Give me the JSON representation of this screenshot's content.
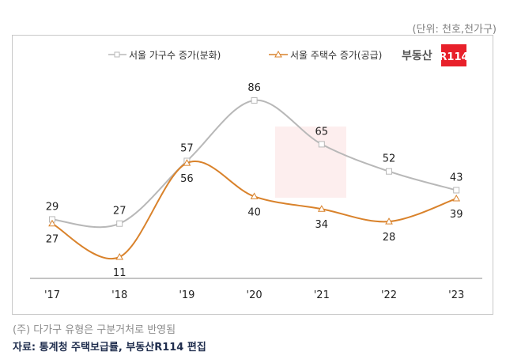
{
  "unit_label": "(단위: 천호,천가구)",
  "note": "(주) 다가구 유형은 구분거처로 반영됨",
  "source": "자료: 통계청 주택보급률, 부동산R114 편집",
  "logo": {
    "text": "부동산",
    "badge": "R114",
    "badge_color": "#e8202a"
  },
  "chart_data": {
    "type": "line",
    "categories": [
      "'17",
      "'18",
      "'19",
      "'20",
      "'21",
      "'22",
      "'23"
    ],
    "series": [
      {
        "name": "서울 가구수 증가(분화)",
        "values": [
          29,
          27,
          57,
          86,
          65,
          52,
          43
        ],
        "color": "#b8b8b8",
        "marker": "square"
      },
      {
        "name": "서울 주택수 증가(공급)",
        "values": [
          27,
          11,
          56,
          40,
          34,
          28,
          39
        ],
        "color": "#d9822b",
        "marker": "triangle"
      }
    ],
    "ylim": [
      0,
      95
    ],
    "grid": false,
    "legend": "top"
  }
}
